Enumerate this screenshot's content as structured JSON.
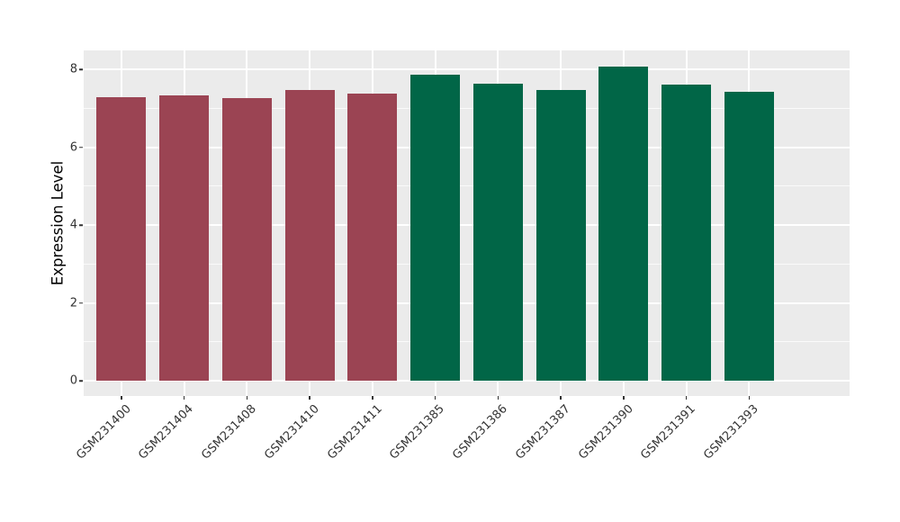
{
  "chart_data": {
    "type": "bar",
    "title": "",
    "xlabel": "",
    "ylabel": "Expression Level",
    "categories": [
      "GSM231400",
      "GSM231404",
      "GSM231408",
      "GSM231410",
      "GSM231411",
      "GSM231385",
      "GSM231386",
      "GSM231387",
      "GSM231390",
      "GSM231391",
      "GSM231393"
    ],
    "values": [
      7.28,
      7.34,
      7.27,
      7.47,
      7.37,
      7.85,
      7.63,
      7.46,
      8.08,
      7.6,
      7.42
    ],
    "bar_colors": [
      "#9B4453",
      "#9B4453",
      "#9B4453",
      "#9B4453",
      "#9B4453",
      "#016647",
      "#016647",
      "#016647",
      "#016647",
      "#016647",
      "#016647"
    ],
    "group_colors": {
      "red_group": "#9B4453",
      "green_group": "#016647"
    },
    "yticks": [
      0,
      2,
      4,
      6,
      8
    ],
    "yticks_minor": [
      1,
      3,
      5,
      7
    ],
    "ylim": [
      0,
      8.5
    ],
    "x_tick_rotation_deg": 45,
    "grid": true,
    "legend": "none",
    "panel_background": "#EBEBEB",
    "gridline_major_color": "#FFFFFF",
    "gridline_minor_color": "#FFFFFF",
    "tick_color": "#333333",
    "axis_text_color": "#333333"
  }
}
